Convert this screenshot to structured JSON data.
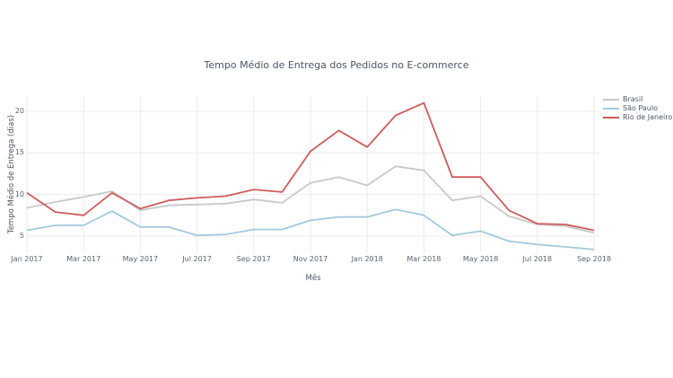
{
  "chart_data": {
    "type": "line",
    "title": "Tempo Médio de Entrega dos Pedidos no E-commerce",
    "xlabel": "Mês",
    "ylabel": "Tempo Médio de Entrega (dias)",
    "categories": [
      "Jan 2017",
      "Feb 2017",
      "Mar 2017",
      "Apr 2017",
      "May 2017",
      "Jun 2017",
      "Jul 2017",
      "Aug 2017",
      "Sep 2017",
      "Oct 2017",
      "Nov 2017",
      "Dec 2017",
      "Jan 2018",
      "Feb 2018",
      "Mar 2018",
      "Apr 2018",
      "May 2018",
      "Jun 2018",
      "Jul 2018",
      "Aug 2018",
      "Sep 2018"
    ],
    "x_tick_labels": [
      "Jan 2017",
      "Mar 2017",
      "May 2017",
      "Jul 2017",
      "Sep 2017",
      "Nov 2017",
      "Jan 2018",
      "Mar 2018",
      "May 2018",
      "Jul 2018",
      "Sep 2018"
    ],
    "y_ticks": [
      5,
      10,
      15,
      20
    ],
    "ylim": [
      3,
      21.8
    ],
    "grid": true,
    "legend_position": "top-right",
    "background_color": "#ffffff",
    "grid_color": "#ebebeb",
    "text_color": "#4d5663",
    "series": [
      {
        "name": "Brasil",
        "color": "#c8c8c8",
        "values": [
          8.4,
          9.1,
          9.7,
          10.4,
          8.1,
          8.7,
          8.8,
          8.9,
          9.4,
          9.0,
          11.4,
          12.1,
          11.1,
          13.4,
          12.9,
          9.3,
          9.8,
          7.4,
          6.4,
          6.2,
          5.4
        ]
      },
      {
        "name": "São Paulo",
        "color": "#a3c9dc",
        "values": [
          5.7,
          6.3,
          6.3,
          8.0,
          6.1,
          6.1,
          5.1,
          5.2,
          5.8,
          5.8,
          6.9,
          7.3,
          7.3,
          8.2,
          7.5,
          5.1,
          5.6,
          4.4,
          4.0,
          3.7,
          3.4
        ]
      },
      {
        "name": "Rio de Janeiro",
        "color": "#cd5c5c",
        "values": [
          10.2,
          7.9,
          7.5,
          10.2,
          8.3,
          9.3,
          9.6,
          9.8,
          10.6,
          10.3,
          15.2,
          17.7,
          15.7,
          19.5,
          21.0,
          12.1,
          12.1,
          8.1,
          6.5,
          6.4,
          5.7
        ]
      }
    ]
  }
}
